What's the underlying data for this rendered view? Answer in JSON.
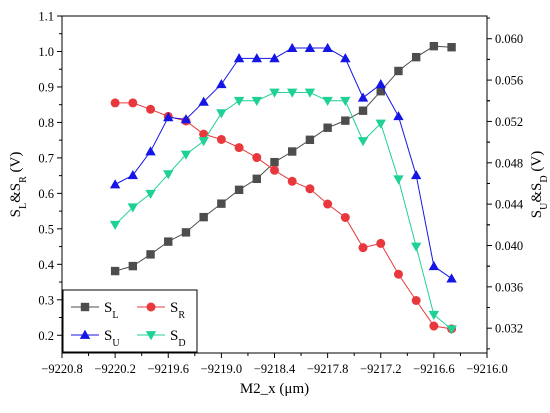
{
  "chart_data": {
    "type": "line",
    "xlabel": "M2_x (μm)",
    "ylabel_left": {
      "main": "S",
      "sub1": "L",
      "mid": "&S",
      "sub2": "R",
      "unit": " (V)"
    },
    "ylabel_right": {
      "main": "S",
      "sub1": "U",
      "mid": "&S",
      "sub2": "D",
      "unit": " (V)"
    },
    "xlim": [
      -9220.8,
      -9216.0
    ],
    "ylim_left": [
      0.15,
      1.1
    ],
    "ylim_right": [
      0.0296,
      0.0622
    ],
    "x_ticks": [
      "-9220.8",
      "-9220.2",
      "-9219.6",
      "-9219.0",
      "-9218.4",
      "-9217.8",
      "-9217.2",
      "-9216.6",
      "-9216.0"
    ],
    "y_ticks_left": [
      "0.2",
      "0.3",
      "0.4",
      "0.5",
      "0.6",
      "0.7",
      "0.8",
      "0.9",
      "1.0",
      "1.1"
    ],
    "y_ticks_right": [
      "0.032",
      "0.036",
      "0.040",
      "0.044",
      "0.048",
      "0.052",
      "0.056",
      "0.060"
    ],
    "legend_position": "bottom-left",
    "series": [
      {
        "name": "S",
        "sub": "L",
        "axis": "left",
        "color": "#4d4d4d",
        "marker": "square",
        "x": [
          -9220.2,
          -9220.0,
          -9219.8,
          -9219.6,
          -9219.4,
          -9219.2,
          -9219.0,
          -9218.8,
          -9218.6,
          -9218.4,
          -9218.2,
          -9218.0,
          -9217.8,
          -9217.6,
          -9217.4,
          -9217.2,
          -9217.0,
          -9216.8,
          -9216.6,
          -9216.4
        ],
        "y": [
          0.381,
          0.395,
          0.428,
          0.464,
          0.49,
          0.533,
          0.571,
          0.61,
          0.641,
          0.688,
          0.718,
          0.751,
          0.785,
          0.805,
          0.833,
          0.888,
          0.945,
          0.984,
          1.015,
          1.012
        ]
      },
      {
        "name": "S",
        "sub": "R",
        "axis": "left",
        "color": "#e8383d",
        "marker": "circle",
        "x": [
          -9220.2,
          -9220.0,
          -9219.8,
          -9219.6,
          -9219.4,
          -9219.2,
          -9219.0,
          -9218.8,
          -9218.6,
          -9218.4,
          -9218.2,
          -9218.0,
          -9217.8,
          -9217.6,
          -9217.4,
          -9217.2,
          -9217.0,
          -9216.8,
          -9216.6,
          -9216.4
        ],
        "y": [
          0.855,
          0.855,
          0.837,
          0.817,
          0.804,
          0.767,
          0.752,
          0.729,
          0.701,
          0.665,
          0.634,
          0.613,
          0.57,
          0.532,
          0.447,
          0.459,
          0.372,
          0.298,
          0.226,
          0.218
        ]
      },
      {
        "name": "S",
        "sub": "U",
        "axis": "right",
        "color": "#1515e6",
        "marker": "triangle-up",
        "x": [
          -9220.2,
          -9220.0,
          -9219.8,
          -9219.6,
          -9219.4,
          -9219.2,
          -9219.0,
          -9218.8,
          -9218.6,
          -9218.4,
          -9218.2,
          -9218.0,
          -9217.8,
          -9217.6,
          -9217.4,
          -9217.2,
          -9217.0,
          -9216.8,
          -9216.6,
          -9216.4
        ],
        "y": [
          0.0459,
          0.0468,
          0.0491,
          0.0524,
          0.0522,
          0.0539,
          0.0556,
          0.0581,
          0.0581,
          0.0581,
          0.0591,
          0.0591,
          0.0591,
          0.0581,
          0.0543,
          0.0556,
          0.0525,
          0.0468,
          0.038,
          0.0368
        ]
      },
      {
        "name": "S",
        "sub": "D",
        "axis": "right",
        "color": "#1fd196",
        "marker": "triangle-down",
        "x": [
          -9220.2,
          -9220.0,
          -9219.8,
          -9219.6,
          -9219.4,
          -9219.2,
          -9219.0,
          -9218.8,
          -9218.6,
          -9218.4,
          -9218.2,
          -9218.0,
          -9217.8,
          -9217.6,
          -9217.4,
          -9217.2,
          -9217.0,
          -9216.8,
          -9216.6,
          -9216.4
        ],
        "y": [
          0.042,
          0.0437,
          0.045,
          0.0469,
          0.0488,
          0.0501,
          0.0528,
          0.054,
          0.054,
          0.0548,
          0.0548,
          0.0548,
          0.054,
          0.054,
          0.0501,
          0.0518,
          0.0464,
          0.0399,
          0.0333,
          0.0319
        ]
      }
    ]
  }
}
